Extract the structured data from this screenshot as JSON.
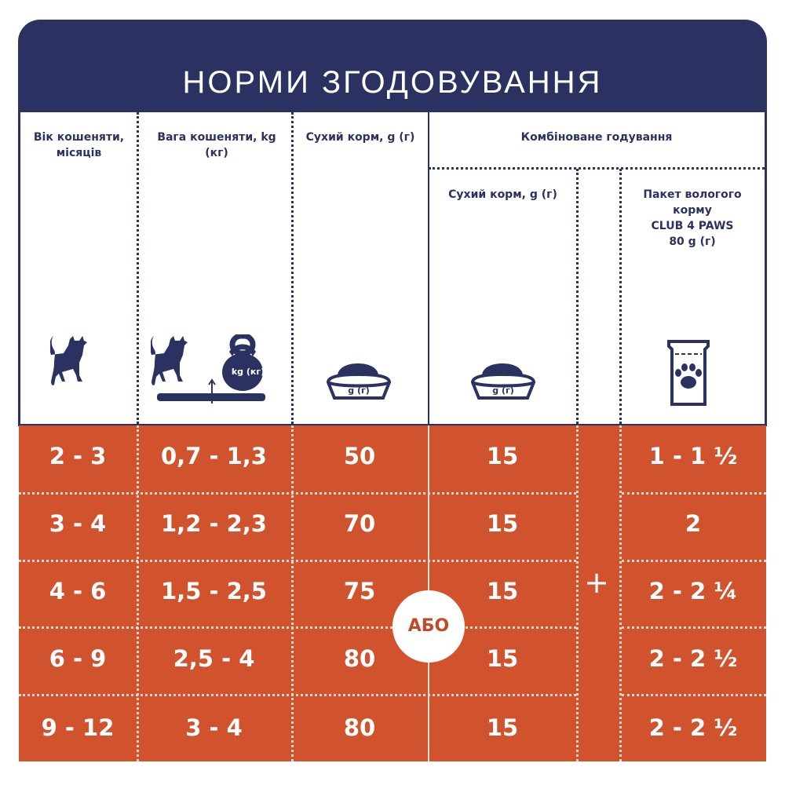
{
  "title": "НОРМИ ЗГОДОВУВАННЯ",
  "headers": {
    "age": "Вік кошеняти, місяців",
    "weight": "Вага кошеняти, kg (кг)",
    "dry": "Сухий корм, g (г)",
    "combined": "Комбіноване годування",
    "combined_dry": "Сухий корм, g (г)",
    "wet_line1": "Пакет вологого",
    "wet_line2": "корму",
    "wet_line3": "CLUB 4 PAWS",
    "wet_line4": "80 g (г)"
  },
  "icons": {
    "weight_label": "kg (кг)",
    "bowl_label": "g (г)"
  },
  "rows": [
    {
      "age": "2 - 3",
      "weight": "0,7 - 1,3",
      "dry": "50",
      "combined_dry": "15",
      "wet": "1 - 1 ½"
    },
    {
      "age": "3 - 4",
      "weight": "1,2 - 2,3",
      "dry": "70",
      "combined_dry": "15",
      "wet": "2"
    },
    {
      "age": "4 - 6",
      "weight": "1,5 - 2,5",
      "dry": "75",
      "combined_dry": "15",
      "wet": "2 - 2 ¼"
    },
    {
      "age": "6 - 9",
      "weight": "2,5 - 4",
      "dry": "80",
      "combined_dry": "15",
      "wet": "2 - 2 ½"
    },
    {
      "age": "9 - 12",
      "weight": "3 - 4",
      "dry": "80",
      "combined_dry": "15",
      "wet": "2 - 2 ½"
    }
  ],
  "or_label": "АБО",
  "plus_label": "+",
  "colors": {
    "navy": "#2b3262",
    "orange": "#d0532d"
  }
}
